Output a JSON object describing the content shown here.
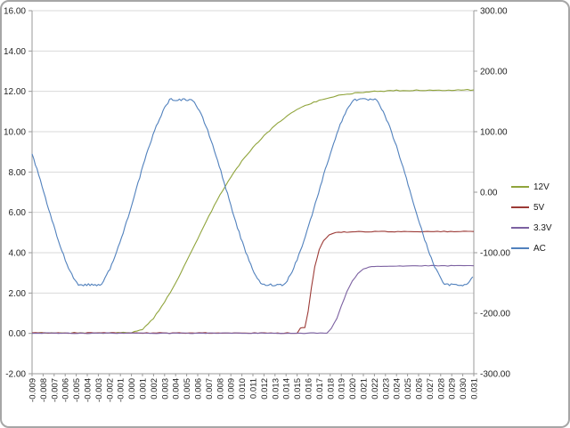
{
  "frame": {
    "border_color": "#A6A6A6"
  },
  "chart_data": {
    "type": "line",
    "title": "",
    "background": "#FFFFFF",
    "grid_color": "#D9D9D9",
    "axis_color": "#9A9A9A",
    "text_color": "#1F1F1F",
    "grid": true,
    "legend_position": "right",
    "x_axis": {
      "min": -0.009,
      "max": 0.031,
      "step": 0.001,
      "tick_labels": [
        "-0.009",
        "-0.008",
        "-0.007",
        "-0.006",
        "-0.005",
        "-0.004",
        "-0.003",
        "-0.002",
        "-0.001",
        "0.000",
        "0.001",
        "0.002",
        "0.003",
        "0.004",
        "0.005",
        "0.006",
        "0.007",
        "0.008",
        "0.009",
        "0.010",
        "0.011",
        "0.012",
        "0.013",
        "0.014",
        "0.015",
        "0.016",
        "0.017",
        "0.018",
        "0.019",
        "0.020",
        "0.021",
        "0.022",
        "0.023",
        "0.024",
        "0.025",
        "0.026",
        "0.027",
        "0.028",
        "0.029",
        "0.030",
        "0.031"
      ]
    },
    "y_left": {
      "min": -2,
      "max": 16,
      "step": 2,
      "tick_labels": [
        "16.00",
        "14.00",
        "12.00",
        "10.00",
        "8.00",
        "6.00",
        "4.00",
        "2.00",
        "0.00",
        "-2.00"
      ]
    },
    "y_right": {
      "min": -300,
      "max": 300,
      "step": 100,
      "tick_labels": [
        "300.00",
        "200.00",
        "100.00",
        "0.00",
        "-100.00",
        "-200.00",
        "-300.00"
      ]
    },
    "series": [
      {
        "name": "12V",
        "color": "#90A43C",
        "axis": "left",
        "noise": 0.025,
        "points": [
          [
            -0.009,
            0.02
          ],
          [
            -0.002,
            0.02
          ],
          [
            -0.001,
            0.03
          ],
          [
            0.0,
            0.05
          ],
          [
            0.001,
            0.2
          ],
          [
            0.002,
            0.75
          ],
          [
            0.003,
            1.55
          ],
          [
            0.004,
            2.5
          ],
          [
            0.005,
            3.6
          ],
          [
            0.006,
            4.7
          ],
          [
            0.007,
            5.8
          ],
          [
            0.008,
            6.85
          ],
          [
            0.009,
            7.75
          ],
          [
            0.01,
            8.55
          ],
          [
            0.011,
            9.2
          ],
          [
            0.012,
            9.8
          ],
          [
            0.013,
            10.3
          ],
          [
            0.014,
            10.75
          ],
          [
            0.015,
            11.1
          ],
          [
            0.016,
            11.35
          ],
          [
            0.017,
            11.55
          ],
          [
            0.018,
            11.7
          ],
          [
            0.019,
            11.82
          ],
          [
            0.02,
            11.9
          ],
          [
            0.021,
            11.96
          ],
          [
            0.022,
            12.0
          ],
          [
            0.024,
            12.04
          ],
          [
            0.027,
            12.06
          ],
          [
            0.031,
            12.07
          ]
        ]
      },
      {
        "name": "5V",
        "color": "#9C3A36",
        "axis": "left",
        "noise": 0.02,
        "points": [
          [
            -0.009,
            0.02
          ],
          [
            0.015,
            0.02
          ],
          [
            0.0153,
            0.25
          ],
          [
            0.0157,
            0.3
          ],
          [
            0.016,
            1.1
          ],
          [
            0.0163,
            2.3
          ],
          [
            0.0166,
            3.3
          ],
          [
            0.017,
            4.15
          ],
          [
            0.0174,
            4.6
          ],
          [
            0.0179,
            4.88
          ],
          [
            0.0185,
            5.0
          ],
          [
            0.02,
            5.04
          ],
          [
            0.025,
            5.05
          ],
          [
            0.031,
            5.05
          ]
        ]
      },
      {
        "name": "3.3V",
        "color": "#7C61A1",
        "axis": "left",
        "noise": 0.018,
        "points": [
          [
            -0.009,
            0.01
          ],
          [
            0.0177,
            0.01
          ],
          [
            0.0181,
            0.25
          ],
          [
            0.0186,
            0.75
          ],
          [
            0.019,
            1.35
          ],
          [
            0.0195,
            2.05
          ],
          [
            0.02,
            2.6
          ],
          [
            0.0205,
            2.95
          ],
          [
            0.021,
            3.18
          ],
          [
            0.0215,
            3.3
          ],
          [
            0.022,
            3.33
          ],
          [
            0.026,
            3.35
          ],
          [
            0.031,
            3.35
          ]
        ]
      },
      {
        "name": "AC",
        "color": "#5181BD",
        "axis": "right",
        "model": {
          "type": "clipped_sine",
          "amplitude": 165,
          "clip": 153,
          "period": 0.0166,
          "peak_time": 0.0045,
          "noise": 1.8,
          "sample_step": 0.00015
        }
      }
    ],
    "legend": {
      "entries": [
        "12V",
        "5V",
        "3.3V",
        "AC"
      ]
    }
  }
}
